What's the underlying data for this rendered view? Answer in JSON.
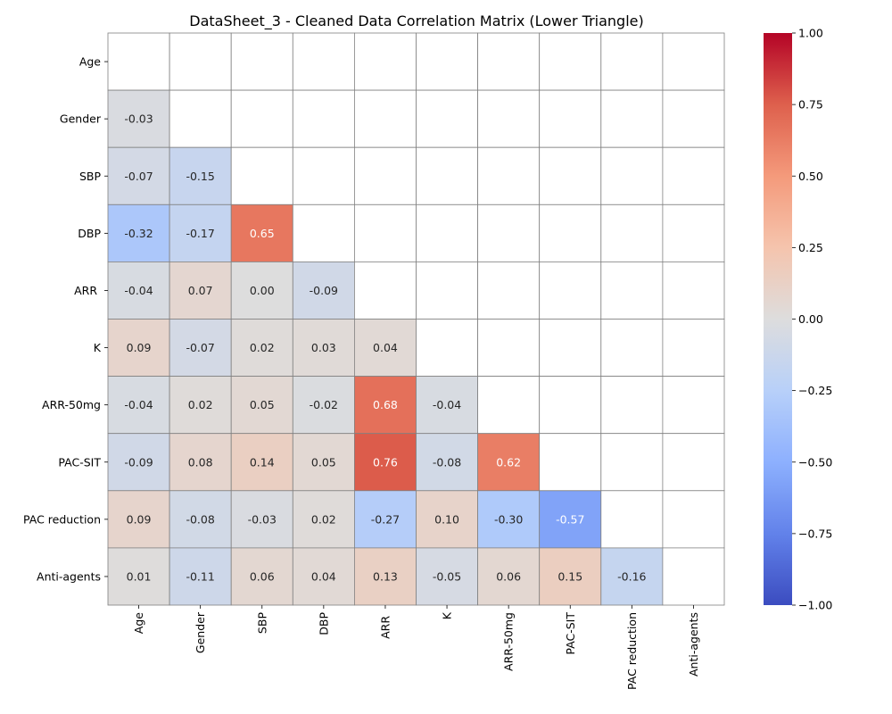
{
  "chart_data": {
    "type": "heatmap",
    "title": "DataSheet_3 - Cleaned Data Correlation Matrix (Lower Triangle)",
    "row_labels": [
      "Age",
      "Gender",
      "SBP",
      "DBP",
      "ARR ",
      "K",
      "ARR-50mg",
      "PAC-SIT",
      "PAC reduction",
      "Anti-agents"
    ],
    "col_labels": [
      "Age",
      "Gender",
      "SBP",
      "DBP",
      "ARR ",
      "K",
      "ARR-50mg",
      "PAC-SIT",
      "PAC reduction",
      "Anti-agents"
    ],
    "values": [
      [
        null,
        null,
        null,
        null,
        null,
        null,
        null,
        null,
        null,
        null
      ],
      [
        -0.03,
        null,
        null,
        null,
        null,
        null,
        null,
        null,
        null,
        null
      ],
      [
        -0.07,
        -0.15,
        null,
        null,
        null,
        null,
        null,
        null,
        null,
        null
      ],
      [
        -0.32,
        -0.17,
        0.65,
        null,
        null,
        null,
        null,
        null,
        null,
        null
      ],
      [
        -0.04,
        0.07,
        0.0,
        -0.09,
        null,
        null,
        null,
        null,
        null,
        null
      ],
      [
        0.09,
        -0.07,
        0.02,
        0.03,
        0.04,
        null,
        null,
        null,
        null,
        null
      ],
      [
        -0.04,
        0.02,
        0.05,
        -0.02,
        0.68,
        -0.04,
        null,
        null,
        null,
        null
      ],
      [
        -0.09,
        0.08,
        0.14,
        0.05,
        0.76,
        -0.08,
        0.62,
        null,
        null,
        null
      ],
      [
        0.09,
        -0.08,
        -0.03,
        0.02,
        -0.27,
        0.1,
        -0.3,
        -0.57,
        null,
        null
      ],
      [
        0.01,
        -0.11,
        0.06,
        0.04,
        0.13,
        -0.05,
        0.06,
        0.15,
        -0.16,
        null
      ]
    ],
    "value_format": "2 decimals",
    "colormap": "coolwarm",
    "vmin": -1,
    "vmax": 1,
    "colorbar_ticks": [
      1.0,
      0.75,
      0.5,
      0.25,
      0.0,
      -0.25,
      -0.5,
      -0.75,
      -1.0
    ],
    "colorbar_tick_labels": [
      "1.00",
      "0.75",
      "0.50",
      "0.25",
      "0.00",
      "−0.25",
      "−0.50",
      "−0.75",
      "−1.00"
    ],
    "cell_border_color": "#808080",
    "grid": true,
    "legend": "colorbar-right"
  }
}
